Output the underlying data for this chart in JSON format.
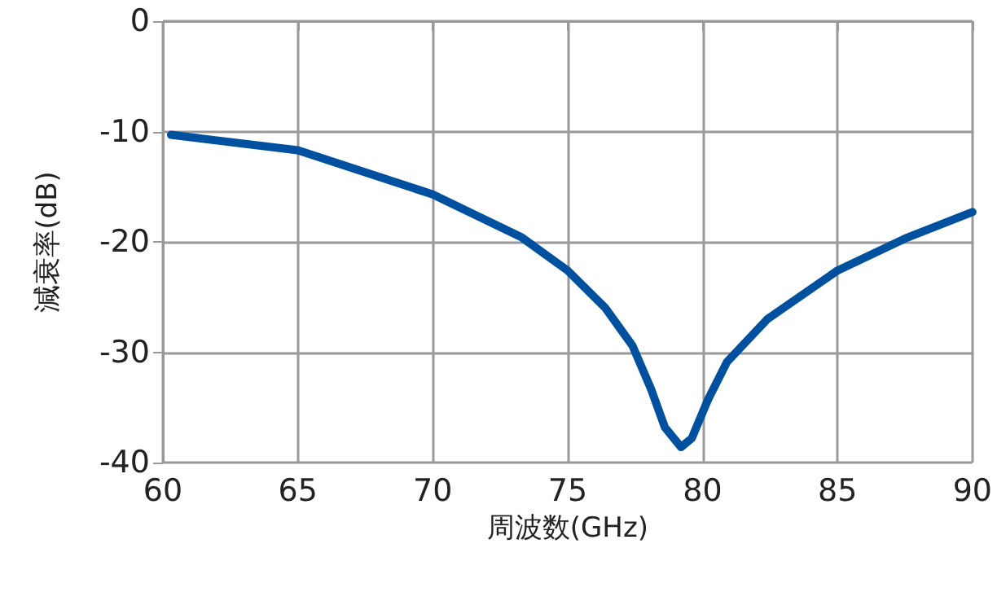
{
  "chart_data": {
    "type": "line",
    "xlabel": "周波数(GHz)",
    "ylabel": "減衰率(dB)",
    "xlim": [
      60,
      90
    ],
    "xticks": [
      60,
      65,
      70,
      75,
      80,
      85,
      90
    ],
    "ylim": [
      -40,
      0
    ],
    "yticks": [
      -40,
      -30,
      -20,
      -10,
      0
    ],
    "grid": true,
    "marker": "none",
    "series": [
      {
        "color": "#0050a0",
        "x": [
          60.3,
          65,
          70,
          73.3,
          75,
          76.4,
          77.4,
          78.1,
          78.6,
          79.2,
          79.6,
          80.2,
          80.9,
          82.4,
          85,
          87.5,
          90
        ],
        "values": [
          -10.3,
          -11.7,
          -15.7,
          -19.6,
          -22.6,
          -26,
          -29.4,
          -33.4,
          -36.8,
          -38.6,
          -37.8,
          -34.3,
          -30.9,
          -27,
          -22.6,
          -19.7,
          -17.3
        ]
      }
    ]
  }
}
